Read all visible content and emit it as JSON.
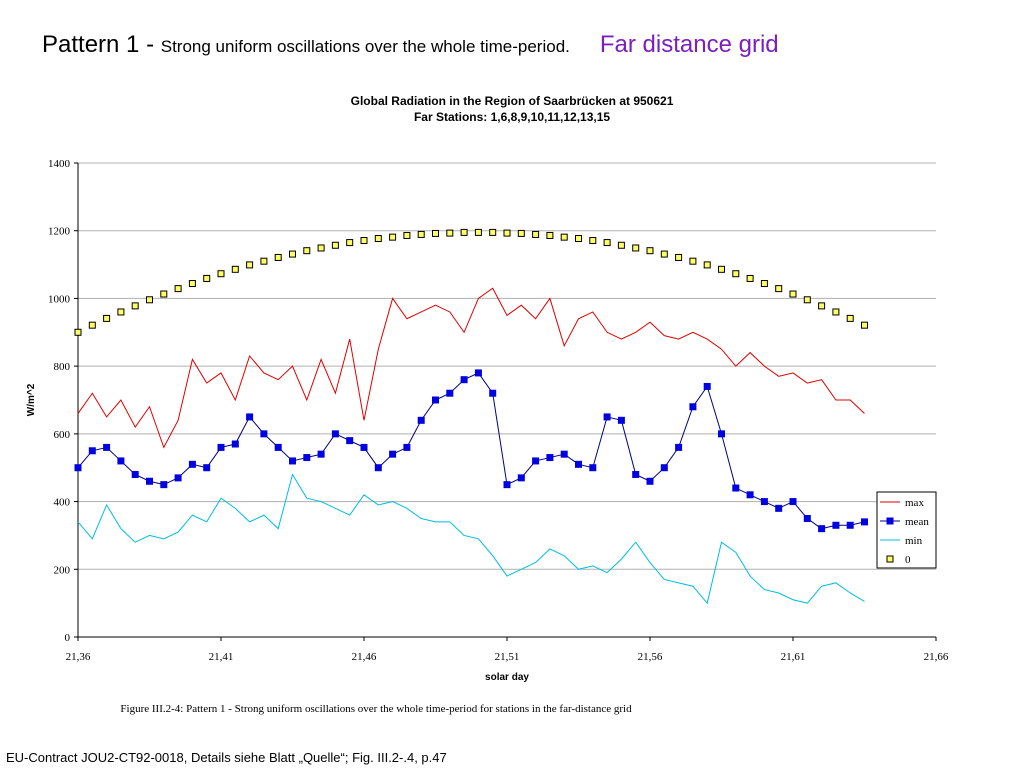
{
  "header": {
    "title": "Pattern 1 - ",
    "subtitle": "Strong uniform oscillations over the whole time-period.",
    "tag": "Far distance grid"
  },
  "chart_data": {
    "type": "line",
    "title": "Global Radiation in the Region of Saarbrücken at 950621",
    "subtitle": "Far Stations: 1,6,8,9,10,11,12,13,15",
    "x_label": "solar day",
    "y_label": "W/m^2",
    "x": [
      21.36,
      21.365,
      21.37,
      21.375,
      21.38,
      21.385,
      21.39,
      21.395,
      21.4,
      21.405,
      21.41,
      21.415,
      21.42,
      21.425,
      21.43,
      21.435,
      21.44,
      21.445,
      21.45,
      21.455,
      21.46,
      21.465,
      21.47,
      21.475,
      21.48,
      21.485,
      21.49,
      21.495,
      21.5,
      21.505,
      21.51,
      21.515,
      21.52,
      21.525,
      21.53,
      21.535,
      21.54,
      21.545,
      21.55,
      21.555,
      21.56,
      21.565,
      21.57,
      21.575,
      21.58,
      21.585,
      21.59,
      21.595,
      21.6,
      21.605,
      21.61,
      21.615,
      21.62,
      21.625,
      21.63,
      21.635
    ],
    "series": [
      {
        "name": "max",
        "color": "#e00000",
        "line": true,
        "marker": null,
        "values": [
          660,
          720,
          650,
          700,
          620,
          680,
          560,
          640,
          820,
          750,
          780,
          700,
          830,
          780,
          760,
          800,
          700,
          820,
          720,
          880,
          640,
          850,
          1000,
          940,
          960,
          980,
          960,
          900,
          1000,
          1030,
          950,
          980,
          940,
          1000,
          860,
          940,
          960,
          900,
          880,
          900,
          930,
          890,
          880,
          900,
          880,
          850,
          800,
          840,
          800,
          770,
          780,
          750,
          760,
          700,
          700,
          660
        ]
      },
      {
        "name": "mean",
        "color": "#0000e0",
        "line": true,
        "line_color": "#000080",
        "marker": "square",
        "marker_edge": "#0000e0",
        "values": [
          500,
          550,
          560,
          520,
          480,
          460,
          450,
          470,
          510,
          500,
          560,
          570,
          650,
          600,
          560,
          520,
          530,
          540,
          600,
          580,
          560,
          500,
          540,
          560,
          640,
          700,
          720,
          760,
          780,
          720,
          450,
          470,
          520,
          530,
          540,
          510,
          500,
          650,
          640,
          480,
          460,
          500,
          560,
          680,
          740,
          600,
          440,
          420,
          400,
          380,
          400,
          350,
          320,
          330,
          330,
          340
        ]
      },
      {
        "name": "min",
        "color": "#00bfe0",
        "line": true,
        "marker": null,
        "values": [
          340,
          290,
          390,
          320,
          280,
          300,
          290,
          310,
          360,
          340,
          410,
          380,
          340,
          360,
          320,
          480,
          410,
          400,
          380,
          360,
          420,
          390,
          400,
          380,
          350,
          340,
          340,
          300,
          290,
          240,
          180,
          200,
          220,
          260,
          240,
          200,
          210,
          190,
          230,
          280,
          220,
          170,
          160,
          150,
          100,
          280,
          250,
          180,
          140,
          130,
          110,
          100,
          150,
          160,
          130,
          105
        ]
      },
      {
        "name": "0",
        "color": "#ffff66",
        "line": false,
        "marker": "square",
        "marker_edge": "#000000",
        "values": [
          900,
          921,
          941,
          960,
          978,
          996,
          1013,
          1029,
          1044,
          1059,
          1073,
          1086,
          1099,
          1110,
          1121,
          1131,
          1141,
          1149,
          1157,
          1165,
          1171,
          1177,
          1181,
          1186,
          1189,
          1192,
          1193,
          1195,
          1195,
          1195,
          1193,
          1192,
          1189,
          1186,
          1181,
          1177,
          1171,
          1165,
          1157,
          1149,
          1141,
          1131,
          1121,
          1110,
          1099,
          1086,
          1073,
          1059,
          1044,
          1029,
          1013,
          996,
          978,
          960,
          941,
          921
        ]
      }
    ],
    "xlim": [
      21.36,
      21.66
    ],
    "xticks": [
      {
        "value": 21.36,
        "label": "21,36"
      },
      {
        "value": 21.41,
        "label": "21,41"
      },
      {
        "value": 21.46,
        "label": "21,46"
      },
      {
        "value": 21.51,
        "label": "21,51"
      },
      {
        "value": 21.56,
        "label": "21,56"
      },
      {
        "value": 21.61,
        "label": "21,61"
      },
      {
        "value": 21.66,
        "label": "21,66"
      }
    ],
    "ylim": [
      0,
      1400
    ],
    "yticks": [
      0,
      200,
      400,
      600,
      800,
      1000,
      1200,
      1400
    ],
    "grid": true,
    "legend": "right"
  },
  "caption": "Figure III.2-4: Pattern 1 - Strong uniform oscillations over the whole time-period for stations in the far-distance grid",
  "footer": "EU-Contract JOU2-CT92-0018, Details siehe Blatt „Quelle“; Fig. III.2-.4, p.47"
}
